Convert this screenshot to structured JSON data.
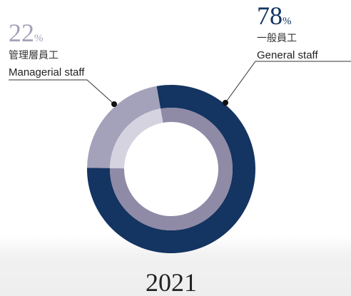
{
  "chart_data": {
    "type": "donut",
    "title": "2021",
    "unit": "%",
    "categories": [
      "Managerial staff",
      "General staff"
    ],
    "categories_zh": [
      "管理層員工",
      "一般員工"
    ],
    "values": [
      22,
      78
    ],
    "colors": [
      "#a4a1ba",
      "#143461"
    ],
    "inner_colors": [
      "#d6d3e1",
      "#8f8aa6"
    ]
  }
}
